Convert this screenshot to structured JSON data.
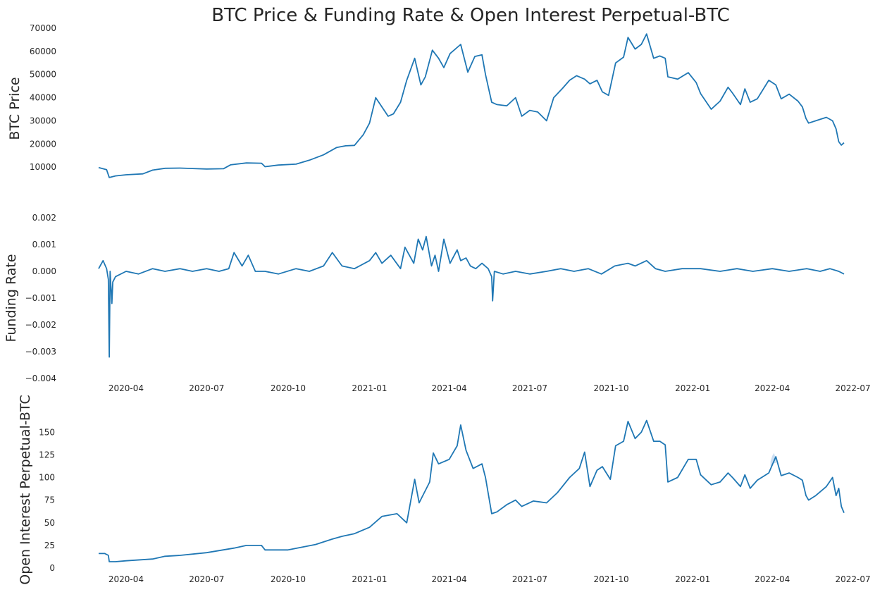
{
  "figure": {
    "title": "BTC Price & Funding Rate & Open Interest Perpetual-BTC",
    "line_color": "#1f77b4",
    "band_color": "#a6c8ea",
    "background": "#ffffff"
  },
  "chart_data": [
    {
      "type": "line",
      "title": "",
      "xlabel": "",
      "ylabel": "BTC  Price",
      "x_ticks": [],
      "y_ticks": [
        "10000",
        "20000",
        "30000",
        "40000",
        "50000",
        "60000",
        "70000"
      ],
      "ylim": [
        0,
        70000
      ],
      "xlim": [
        "2020-03-01",
        "2022-06-21"
      ],
      "grid": false,
      "series": [
        {
          "x": [
            "2020-03-01",
            "2020-03-10",
            "2020-03-13",
            "2020-03-20",
            "2020-04-01",
            "2020-04-20",
            "2020-05-01",
            "2020-05-15",
            "2020-06-01",
            "2020-06-15",
            "2020-07-01",
            "2020-07-20",
            "2020-07-28",
            "2020-08-15",
            "2020-09-01",
            "2020-09-05",
            "2020-09-20",
            "2020-10-10",
            "2020-10-25",
            "2020-11-10",
            "2020-11-25",
            "2020-12-05",
            "2020-12-15",
            "2020-12-25",
            "2021-01-01",
            "2021-01-08",
            "2021-01-15",
            "2021-01-22",
            "2021-01-28",
            "2021-02-05",
            "2021-02-12",
            "2021-02-21",
            "2021-02-28",
            "2021-03-05",
            "2021-03-13",
            "2021-03-20",
            "2021-03-26",
            "2021-04-02",
            "2021-04-14",
            "2021-04-22",
            "2021-04-30",
            "2021-05-08",
            "2021-05-12",
            "2021-05-19",
            "2021-05-25",
            "2021-06-05",
            "2021-06-15",
            "2021-06-22",
            "2021-07-01",
            "2021-07-10",
            "2021-07-20",
            "2021-07-28",
            "2021-08-07",
            "2021-08-15",
            "2021-08-23",
            "2021-09-01",
            "2021-09-07",
            "2021-09-15",
            "2021-09-21",
            "2021-09-28",
            "2021-10-06",
            "2021-10-15",
            "2021-10-20",
            "2021-10-28",
            "2021-11-04",
            "2021-11-10",
            "2021-11-18",
            "2021-11-25",
            "2021-12-01",
            "2021-12-04",
            "2021-12-15",
            "2021-12-27",
            "2022-01-05",
            "2022-01-10",
            "2022-01-22",
            "2022-02-01",
            "2022-02-10",
            "2022-02-15",
            "2022-02-24",
            "2022-03-01",
            "2022-03-07",
            "2022-03-15",
            "2022-03-28",
            "2022-04-05",
            "2022-04-11",
            "2022-04-20",
            "2022-04-30",
            "2022-05-05",
            "2022-05-09",
            "2022-05-12",
            "2022-05-20",
            "2022-06-01",
            "2022-06-08",
            "2022-06-12",
            "2022-06-15",
            "2022-06-18",
            "2022-06-21"
          ],
          "y": [
            9800,
            8900,
            5500,
            6200,
            6700,
            7100,
            8700,
            9500,
            9600,
            9400,
            9200,
            9300,
            11000,
            11800,
            11700,
            10200,
            10900,
            11300,
            13000,
            15300,
            18500,
            19200,
            19400,
            24000,
            29000,
            40000,
            36000,
            32000,
            33000,
            38000,
            47500,
            57000,
            45500,
            49000,
            60500,
            57000,
            53000,
            59000,
            63000,
            51000,
            57800,
            58500,
            50000,
            38000,
            37000,
            36500,
            40000,
            32000,
            34500,
            33800,
            30000,
            40000,
            44000,
            47500,
            49500,
            48000,
            46000,
            47500,
            42500,
            41000,
            55000,
            57500,
            66000,
            61000,
            63000,
            67500,
            57000,
            58000,
            57000,
            49000,
            48000,
            50800,
            46500,
            41800,
            35000,
            38500,
            44500,
            42000,
            37000,
            43800,
            38000,
            39500,
            47500,
            45500,
            39500,
            41500,
            38500,
            36000,
            31000,
            29000,
            30000,
            31500,
            30000,
            26500,
            21000,
            19500,
            20500
          ]
        }
      ]
    },
    {
      "type": "line",
      "title": "",
      "xlabel": "",
      "ylabel": "Funding Rate",
      "x_ticks": [
        "2020-04",
        "2020-07",
        "2020-10",
        "2021-01",
        "2021-04",
        "2021-07",
        "2021-10",
        "2022-01",
        "2022-04",
        "2022-07"
      ],
      "y_ticks": [
        "−0.004",
        "−0.003",
        "−0.002",
        "−0.001",
        "0.000",
        "0.001",
        "0.002"
      ],
      "ylim": [
        -0.004,
        0.002
      ],
      "xlim": [
        "2020-03-01",
        "2022-06-21"
      ],
      "grid": false,
      "series": [
        {
          "x": [
            "2020-03-01",
            "2020-03-06",
            "2020-03-10",
            "2020-03-12",
            "2020-03-13",
            "2020-03-14",
            "2020-03-16",
            "2020-03-17",
            "2020-03-20",
            "2020-04-01",
            "2020-04-15",
            "2020-05-01",
            "2020-05-15",
            "2020-06-01",
            "2020-06-15",
            "2020-07-01",
            "2020-07-15",
            "2020-07-26",
            "2020-08-01",
            "2020-08-10",
            "2020-08-17",
            "2020-08-25",
            "2020-09-05",
            "2020-09-20",
            "2020-10-10",
            "2020-10-25",
            "2020-11-10",
            "2020-11-20",
            "2020-12-01",
            "2020-12-15",
            "2021-01-01",
            "2021-01-08",
            "2021-01-15",
            "2021-01-25",
            "2021-02-05",
            "2021-02-10",
            "2021-02-20",
            "2021-02-25",
            "2021-03-02",
            "2021-03-06",
            "2021-03-12",
            "2021-03-16",
            "2021-03-20",
            "2021-03-26",
            "2021-04-02",
            "2021-04-10",
            "2021-04-14",
            "2021-04-20",
            "2021-04-25",
            "2021-05-01",
            "2021-05-08",
            "2021-05-15",
            "2021-05-19",
            "2021-05-20",
            "2021-05-22",
            "2021-06-01",
            "2021-06-15",
            "2021-07-01",
            "2021-07-20",
            "2021-08-05",
            "2021-08-20",
            "2021-09-05",
            "2021-09-20",
            "2021-10-05",
            "2021-10-20",
            "2021-10-28",
            "2021-11-10",
            "2021-11-20",
            "2021-12-01",
            "2021-12-20",
            "2022-01-10",
            "2022-02-01",
            "2022-02-20",
            "2022-03-10",
            "2022-04-01",
            "2022-04-20",
            "2022-05-10",
            "2022-05-25",
            "2022-06-05",
            "2022-06-15",
            "2022-06-21"
          ],
          "y": [
            0.0001,
            0.0004,
            0.0001,
            -0.0003,
            -0.0032,
            0.0,
            -0.0012,
            -0.0004,
            -0.0002,
            0.0,
            -0.0001,
            0.0001,
            0.0,
            0.0001,
            0.0,
            0.0001,
            0.0,
            0.0001,
            0.0007,
            0.0002,
            0.0006,
            0.0,
            0.0,
            -0.0001,
            0.0001,
            0.0,
            0.0002,
            0.0007,
            0.0002,
            0.0001,
            0.0004,
            0.0007,
            0.0003,
            0.0006,
            0.0001,
            0.0009,
            0.0003,
            0.0012,
            0.0008,
            0.0013,
            0.0002,
            0.0006,
            0.0,
            0.0012,
            0.0003,
            0.0008,
            0.0004,
            0.0005,
            0.0002,
            0.0001,
            0.0003,
            0.0001,
            -0.0002,
            -0.0011,
            0.0,
            -0.0001,
            0.0,
            -0.0001,
            0.0,
            0.0001,
            0.0,
            0.0001,
            -0.0001,
            0.0002,
            0.0003,
            0.0002,
            0.0004,
            0.0001,
            0.0,
            0.0001,
            0.0001,
            0.0,
            0.0001,
            0.0,
            0.0001,
            0.0,
            0.0001,
            0.0,
            0.0001,
            0.0,
            -0.0001
          ]
        }
      ]
    },
    {
      "type": "area",
      "title": "",
      "xlabel": "",
      "ylabel": "Open Interest Perpetual-BTC",
      "x_ticks": [
        "2020-04",
        "2020-07",
        "2020-10",
        "2021-01",
        "2021-04",
        "2021-07",
        "2021-10",
        "2022-01",
        "2022-04",
        "2022-07"
      ],
      "y_ticks": [
        "0",
        "25",
        "50",
        "75",
        "100",
        "125",
        "150"
      ],
      "ylim": [
        0,
        165
      ],
      "xlim": [
        "2020-03-01",
        "2022-06-21"
      ],
      "grid": false,
      "series": [
        {
          "x": [
            "2020-03-01",
            "2020-03-08",
            "2020-03-12",
            "2020-03-13",
            "2020-03-20",
            "2020-04-01",
            "2020-05-01",
            "2020-05-15",
            "2020-06-01",
            "2020-07-01",
            "2020-08-01",
            "2020-08-15",
            "2020-09-01",
            "2020-09-05",
            "2020-10-01",
            "2020-11-01",
            "2020-11-20",
            "2020-12-01",
            "2020-12-15",
            "2021-01-01",
            "2021-01-15",
            "2021-02-01",
            "2021-02-12",
            "2021-02-21",
            "2021-02-26",
            "2021-03-10",
            "2021-03-14",
            "2021-03-20",
            "2021-04-01",
            "2021-04-10",
            "2021-04-14",
            "2021-04-20",
            "2021-04-28",
            "2021-05-08",
            "2021-05-12",
            "2021-05-19",
            "2021-05-25",
            "2021-06-05",
            "2021-06-15",
            "2021-06-22",
            "2021-07-05",
            "2021-07-20",
            "2021-08-01",
            "2021-08-15",
            "2021-08-26",
            "2021-09-01",
            "2021-09-07",
            "2021-09-15",
            "2021-09-21",
            "2021-09-30",
            "2021-10-06",
            "2021-10-15",
            "2021-10-20",
            "2021-10-28",
            "2021-11-04",
            "2021-11-10",
            "2021-11-18",
            "2021-11-25",
            "2021-12-01",
            "2021-12-04",
            "2021-12-15",
            "2021-12-27",
            "2022-01-05",
            "2022-01-10",
            "2022-01-22",
            "2022-02-01",
            "2022-02-10",
            "2022-02-15",
            "2022-02-24",
            "2022-03-01",
            "2022-03-07",
            "2022-03-15",
            "2022-03-28",
            "2022-04-05",
            "2022-04-11",
            "2022-04-20",
            "2022-04-30",
            "2022-05-05",
            "2022-05-09",
            "2022-05-12",
            "2022-05-20",
            "2022-06-01",
            "2022-06-08",
            "2022-06-12",
            "2022-06-15",
            "2022-06-18",
            "2022-06-21"
          ],
          "y": [
            16,
            16,
            14,
            7,
            7,
            8,
            10,
            13,
            14,
            17,
            22,
            25,
            25,
            20,
            20,
            26,
            32,
            35,
            38,
            45,
            57,
            60,
            50,
            98,
            72,
            95,
            127,
            115,
            120,
            135,
            158,
            130,
            110,
            115,
            100,
            60,
            62,
            70,
            75,
            68,
            74,
            72,
            83,
            100,
            110,
            128,
            90,
            108,
            112,
            98,
            135,
            140,
            162,
            143,
            150,
            163,
            140,
            140,
            136,
            95,
            100,
            120,
            120,
            103,
            92,
            95,
            105,
            100,
            90,
            103,
            88,
            97,
            105,
            123,
            102,
            105,
            100,
            97,
            80,
            75,
            80,
            90,
            100,
            80,
            88,
            68,
            61
          ],
          "band": {
            "x": [
              "2022-03-30",
              "2022-04-01",
              "2022-04-03",
              "2022-04-05"
            ],
            "lower": [
              112,
              114,
              116,
              116
            ],
            "upper": [
              118,
              124,
              127,
              120
            ]
          }
        }
      ]
    }
  ]
}
